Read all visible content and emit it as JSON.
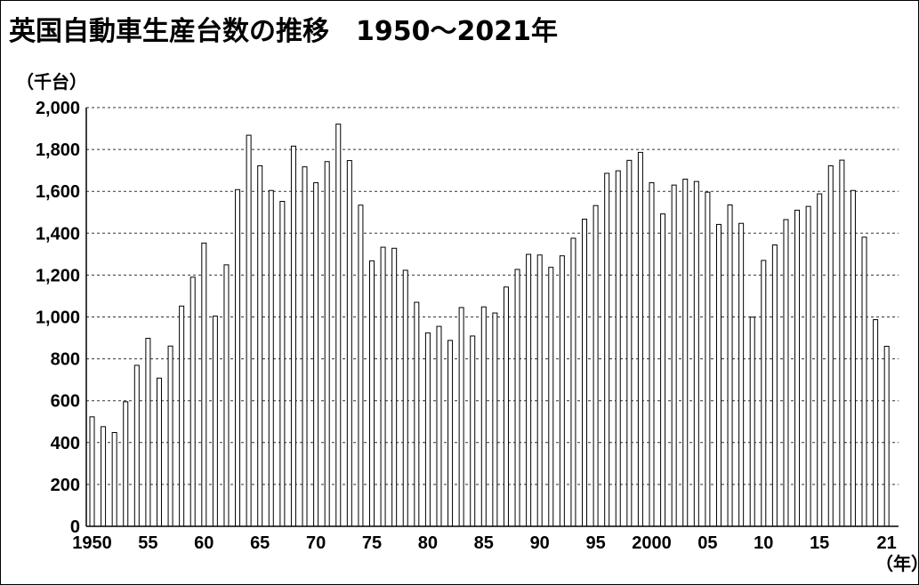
{
  "chart_data": {
    "type": "bar",
    "title": "英国自動車生産台数の推移　1950～2021年",
    "ylabel": "（千台）",
    "xlabel": "（年）",
    "ylim": [
      0,
      2000
    ],
    "yticks": [
      0,
      200,
      400,
      600,
      800,
      1000,
      1200,
      1400,
      1600,
      1800,
      2000
    ],
    "ytick_labels": [
      "0",
      "200",
      "400",
      "600",
      "800",
      "1,000",
      "1,200",
      "1,400",
      "1,600",
      "1,800",
      "2,000"
    ],
    "grid": "horizontal-dashed",
    "x_start_year": 1950,
    "xtick_labels": [
      {
        "year": 1950,
        "label": "1950"
      },
      {
        "year": 1955,
        "label": "55"
      },
      {
        "year": 1960,
        "label": "60"
      },
      {
        "year": 1965,
        "label": "65"
      },
      {
        "year": 1970,
        "label": "70"
      },
      {
        "year": 1975,
        "label": "75"
      },
      {
        "year": 1980,
        "label": "80"
      },
      {
        "year": 1985,
        "label": "85"
      },
      {
        "year": 1990,
        "label": "90"
      },
      {
        "year": 1995,
        "label": "95"
      },
      {
        "year": 2000,
        "label": "2000"
      },
      {
        "year": 2005,
        "label": "05"
      },
      {
        "year": 2010,
        "label": "10"
      },
      {
        "year": 2015,
        "label": "15"
      },
      {
        "year": 2021,
        "label": "21"
      }
    ],
    "categories": [
      1950,
      1951,
      1952,
      1953,
      1954,
      1955,
      1956,
      1957,
      1958,
      1959,
      1960,
      1961,
      1962,
      1963,
      1964,
      1965,
      1966,
      1967,
      1968,
      1969,
      1970,
      1971,
      1972,
      1973,
      1974,
      1975,
      1976,
      1977,
      1978,
      1979,
      1980,
      1981,
      1982,
      1983,
      1984,
      1985,
      1986,
      1987,
      1988,
      1989,
      1990,
      1991,
      1992,
      1993,
      1994,
      1995,
      1996,
      1997,
      1998,
      1999,
      2000,
      2001,
      2002,
      2003,
      2004,
      2005,
      2006,
      2007,
      2008,
      2009,
      2010,
      2011,
      2012,
      2013,
      2014,
      2015,
      2016,
      2017,
      2018,
      2019,
      2020,
      2021
    ],
    "values": [
      523,
      476,
      448,
      595,
      769,
      898,
      708,
      861,
      1052,
      1190,
      1353,
      1004,
      1249,
      1608,
      1868,
      1722,
      1604,
      1552,
      1816,
      1717,
      1641,
      1742,
      1921,
      1747,
      1534,
      1268,
      1333,
      1328,
      1223,
      1070,
      924,
      955,
      888,
      1045,
      909,
      1048,
      1019,
      1143,
      1227,
      1299,
      1296,
      1237,
      1292,
      1376,
      1467,
      1532,
      1686,
      1698,
      1748,
      1786,
      1641,
      1492,
      1630,
      1658,
      1647,
      1596,
      1442,
      1535,
      1447,
      999,
      1270,
      1344,
      1465,
      1510,
      1528,
      1588,
      1722,
      1749,
      1604,
      1381,
      987,
      860
    ],
    "colors": {
      "bar_fill": "#ffffff",
      "bar_stroke": "#000000",
      "grid": "#333333",
      "axis": "#000000"
    }
  }
}
